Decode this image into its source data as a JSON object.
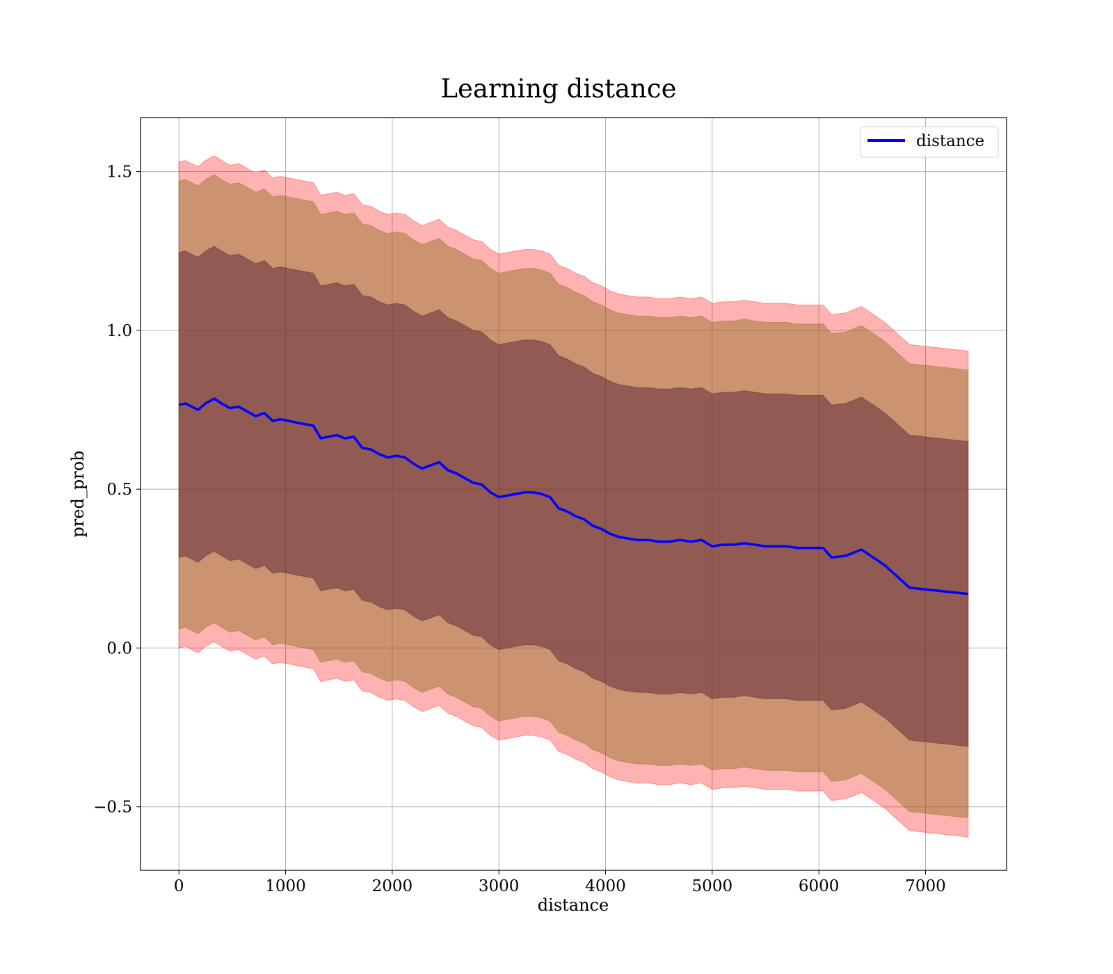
{
  "chart_data": {
    "type": "line",
    "title": "Learning distance",
    "xlabel": "distance",
    "ylabel": "pred_prob",
    "xlim": [
      -360,
      7760
    ],
    "ylim": [
      -0.7,
      1.67
    ],
    "xticks": [
      0,
      1000,
      2000,
      3000,
      4000,
      5000,
      6000,
      7000
    ],
    "xtick_labels": [
      "0",
      "1000",
      "2000",
      "3000",
      "4000",
      "5000",
      "6000",
      "7000"
    ],
    "yticks": [
      -0.5,
      0.0,
      0.5,
      1.0,
      1.5
    ],
    "ytick_labels": [
      "−0.5",
      "0.0",
      "0.5",
      "1.0",
      "1.5"
    ],
    "grid": true,
    "legend": {
      "position": "top-right",
      "entries": [
        "distance"
      ]
    },
    "colors": {
      "line": "#0000ff",
      "outer_band": "#ff0000",
      "middle_band": "#8b6d1d",
      "inner_band": "#4b1830"
    },
    "series": [
      {
        "name": "distance",
        "x": [
          0,
          60,
          120,
          180,
          250,
          330,
          400,
          480,
          560,
          640,
          720,
          800,
          880,
          950,
          1030,
          1100,
          1180,
          1260,
          1330,
          1400,
          1480,
          1560,
          1640,
          1720,
          1800,
          1880,
          1960,
          2040,
          2120,
          2200,
          2280,
          2360,
          2440,
          2520,
          2600,
          2680,
          2760,
          2840,
          2920,
          3000,
          3080,
          3160,
          3240,
          3320,
          3400,
          3480,
          3560,
          3640,
          3720,
          3800,
          3880,
          3960,
          4040,
          4120,
          4200,
          4300,
          4400,
          4500,
          4600,
          4700,
          4800,
          4900,
          5000,
          5100,
          5200,
          5300,
          5400,
          5500,
          5600,
          5700,
          5800,
          5900,
          6000,
          6040,
          6120,
          6250,
          6400,
          6620,
          6850,
          7400
        ],
        "y": [
          0.765,
          0.77,
          0.76,
          0.75,
          0.77,
          0.785,
          0.77,
          0.755,
          0.76,
          0.745,
          0.73,
          0.74,
          0.715,
          0.72,
          0.715,
          0.71,
          0.705,
          0.7,
          0.66,
          0.665,
          0.67,
          0.66,
          0.665,
          0.63,
          0.625,
          0.61,
          0.6,
          0.605,
          0.6,
          0.58,
          0.565,
          0.575,
          0.585,
          0.56,
          0.55,
          0.535,
          0.52,
          0.515,
          0.49,
          0.475,
          0.48,
          0.485,
          0.49,
          0.49,
          0.485,
          0.475,
          0.44,
          0.43,
          0.415,
          0.405,
          0.385,
          0.375,
          0.36,
          0.35,
          0.345,
          0.34,
          0.34,
          0.335,
          0.335,
          0.34,
          0.335,
          0.34,
          0.32,
          0.325,
          0.325,
          0.33,
          0.325,
          0.32,
          0.32,
          0.32,
          0.315,
          0.315,
          0.315,
          0.315,
          0.285,
          0.29,
          0.31,
          0.26,
          0.19,
          0.17
        ],
        "band_inner_halfwidth": 0.48,
        "band_middle_halfwidth": 0.705,
        "band_outer_halfwidth": 0.765
      }
    ]
  }
}
